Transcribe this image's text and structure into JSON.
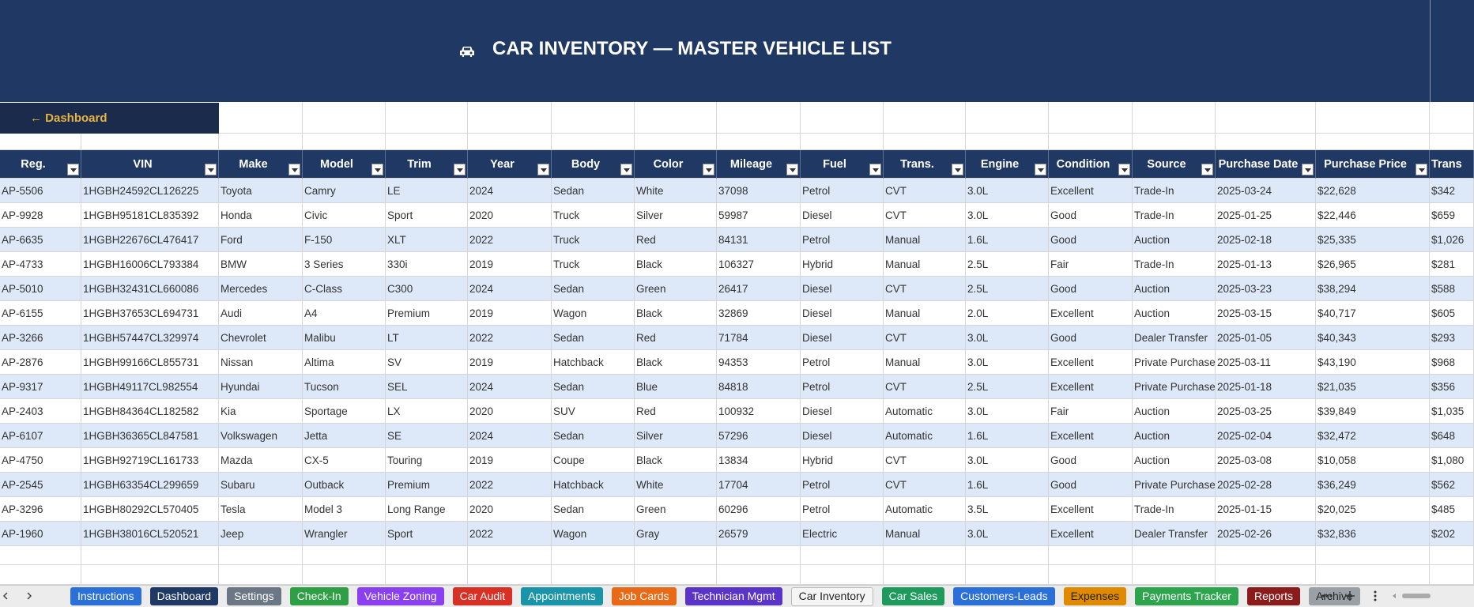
{
  "header": {
    "title": "CAR INVENTORY — MASTER VEHICLE LIST"
  },
  "nav": {
    "dashboard": "← Dashboard"
  },
  "table": {
    "columns": [
      "Reg.",
      "VIN",
      "Make",
      "Model",
      "Trim",
      "Year",
      "Body",
      "Color",
      "Mileage",
      "Fuel",
      "Trans.",
      "Engine",
      "Condition",
      "Source",
      "Purchase Date",
      "Purchase Price",
      "Trans"
    ],
    "rows": [
      [
        "AP-5506",
        "1HGBH24592CL126225",
        "Toyota",
        "Camry",
        "LE",
        "2024",
        "Sedan",
        "White",
        "37098",
        "Petrol",
        "CVT",
        "3.0L",
        "Excellent",
        "Trade-In",
        "2025-03-24",
        "$22,628",
        "$342"
      ],
      [
        "AP-9928",
        "1HGBH95181CL835392",
        "Honda",
        "Civic",
        "Sport",
        "2020",
        "Truck",
        "Silver",
        "59987",
        "Diesel",
        "CVT",
        "3.0L",
        "Good",
        "Trade-In",
        "2025-01-25",
        "$22,446",
        "$659"
      ],
      [
        "AP-6635",
        "1HGBH22676CL476417",
        "Ford",
        "F-150",
        "XLT",
        "2022",
        "Truck",
        "Red",
        "84131",
        "Petrol",
        "Manual",
        "1.6L",
        "Good",
        "Auction",
        "2025-02-18",
        "$25,335",
        "$1,026"
      ],
      [
        "AP-4733",
        "1HGBH16006CL793384",
        "BMW",
        "3 Series",
        "330i",
        "2019",
        "Truck",
        "Black",
        "106327",
        "Hybrid",
        "Manual",
        "2.5L",
        "Fair",
        "Trade-In",
        "2025-01-13",
        "$26,965",
        "$281"
      ],
      [
        "AP-5010",
        "1HGBH32431CL660086",
        "Mercedes",
        "C-Class",
        "C300",
        "2024",
        "Sedan",
        "Green",
        "26417",
        "Diesel",
        "CVT",
        "2.5L",
        "Good",
        "Auction",
        "2025-03-23",
        "$38,294",
        "$588"
      ],
      [
        "AP-6155",
        "1HGBH37653CL694731",
        "Audi",
        "A4",
        "Premium",
        "2019",
        "Wagon",
        "Black",
        "32869",
        "Diesel",
        "Manual",
        "2.0L",
        "Excellent",
        "Auction",
        "2025-03-15",
        "$40,717",
        "$605"
      ],
      [
        "AP-3266",
        "1HGBH57447CL329974",
        "Chevrolet",
        "Malibu",
        "LT",
        "2022",
        "Sedan",
        "Red",
        "71784",
        "Diesel",
        "CVT",
        "3.0L",
        "Good",
        "Dealer Transfer",
        "2025-01-05",
        "$40,343",
        "$293"
      ],
      [
        "AP-2876",
        "1HGBH99166CL855731",
        "Nissan",
        "Altima",
        "SV",
        "2019",
        "Hatchback",
        "Black",
        "94353",
        "Petrol",
        "Manual",
        "3.0L",
        "Excellent",
        "Private Purchase",
        "2025-03-11",
        "$43,190",
        "$968"
      ],
      [
        "AP-9317",
        "1HGBH49117CL982554",
        "Hyundai",
        "Tucson",
        "SEL",
        "2024",
        "Sedan",
        "Blue",
        "84818",
        "Petrol",
        "CVT",
        "2.5L",
        "Excellent",
        "Private Purchase",
        "2025-01-18",
        "$21,035",
        "$356"
      ],
      [
        "AP-2403",
        "1HGBH84364CL182582",
        "Kia",
        "Sportage",
        "LX",
        "2020",
        "SUV",
        "Red",
        "100932",
        "Diesel",
        "Automatic",
        "3.0L",
        "Fair",
        "Auction",
        "2025-03-25",
        "$39,849",
        "$1,035"
      ],
      [
        "AP-6107",
        "1HGBH36365CL847581",
        "Volkswagen",
        "Jetta",
        "SE",
        "2024",
        "Sedan",
        "Silver",
        "57296",
        "Diesel",
        "Automatic",
        "1.6L",
        "Excellent",
        "Auction",
        "2025-02-04",
        "$32,472",
        "$648"
      ],
      [
        "AP-4750",
        "1HGBH92719CL161733",
        "Mazda",
        "CX-5",
        "Touring",
        "2019",
        "Coupe",
        "Black",
        "13834",
        "Hybrid",
        "CVT",
        "3.0L",
        "Good",
        "Auction",
        "2025-03-08",
        "$10,058",
        "$1,080"
      ],
      [
        "AP-2545",
        "1HGBH63354CL299659",
        "Subaru",
        "Outback",
        "Premium",
        "2022",
        "Hatchback",
        "White",
        "17704",
        "Petrol",
        "CVT",
        "1.6L",
        "Good",
        "Private Purchase",
        "2025-02-28",
        "$36,249",
        "$562"
      ],
      [
        "AP-3296",
        "1HGBH80292CL570405",
        "Tesla",
        "Model 3",
        "Long Range",
        "2020",
        "Sedan",
        "Green",
        "60296",
        "Petrol",
        "Automatic",
        "3.5L",
        "Excellent",
        "Trade-In",
        "2025-01-15",
        "$20,025",
        "$485"
      ],
      [
        "AP-1960",
        "1HGBH38016CL520521",
        "Jeep",
        "Wrangler",
        "Sport",
        "2022",
        "Wagon",
        "Gray",
        "26579",
        "Electric",
        "Manual",
        "3.0L",
        "Excellent",
        "Dealer Transfer",
        "2025-02-26",
        "$32,836",
        "$202"
      ]
    ]
  },
  "tabs": [
    {
      "label": "Instructions",
      "color": "#2b6fd8"
    },
    {
      "label": "Dashboard",
      "color": "#1f3864"
    },
    {
      "label": "Settings",
      "color": "#6b7785"
    },
    {
      "label": "Check-In",
      "color": "#2e9f45"
    },
    {
      "label": "Vehicle Zoning",
      "color": "#8a3ff0"
    },
    {
      "label": "Car Audit",
      "color": "#d93025"
    },
    {
      "label": "Appointments",
      "color": "#1a94a8"
    },
    {
      "label": "Job Cards",
      "color": "#e86a17"
    },
    {
      "label": "Technician Mgmt",
      "color": "#5a34c8"
    },
    {
      "label": "Car Inventory",
      "color": "#f5f5f5"
    },
    {
      "label": "Car Sales",
      "color": "#1e9a5c"
    },
    {
      "label": "Customers-Leads",
      "color": "#2b6fd8"
    },
    {
      "label": "Expenses",
      "color": "#e08a00"
    },
    {
      "label": "Payments Tracker",
      "color": "#2ea44f"
    },
    {
      "label": "Reports",
      "color": "#8b1c1c"
    },
    {
      "label": "Archive",
      "color": "#9aa0a6"
    }
  ]
}
